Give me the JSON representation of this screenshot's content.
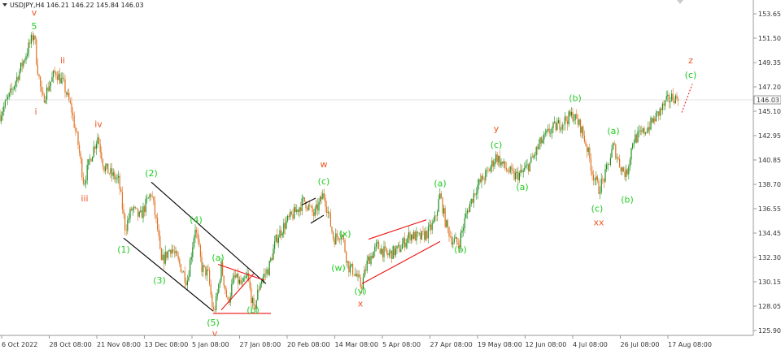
{
  "header": {
    "symbol": "USDJPY,H4",
    "ohlc": "146.21 146.22 145.84 146.03"
  },
  "colors": {
    "up": "#1a8c1a",
    "down": "#e07020",
    "green_label": "#22cc22",
    "red_label": "#ee5522",
    "channel_black": "#000000",
    "channel_red": "#ee1111",
    "axis": "#999999"
  },
  "chart_data": {
    "type": "candlestick",
    "title": "",
    "symbol": "USDJPY",
    "timeframe": "H4",
    "current_price": 146.03,
    "ylim": [
      125.3,
      154.6
    ],
    "y_ticks": [
      "153.65",
      "151.50",
      "149.35",
      "147.20",
      "145.10",
      "142.95",
      "140.85",
      "138.70",
      "136.55",
      "134.45",
      "132.30",
      "130.15",
      "128.05",
      "125.90"
    ],
    "x_ticks": [
      "6 Oct 2022",
      "28 Oct 08:00",
      "21 Nov 08:00",
      "13 Dec 08:00",
      "5 Jan 08:00",
      "27 Jan 08:00",
      "20 Feb 08:00",
      "14 Mar 08:00",
      "5 Apr 08:00",
      "27 Apr 08:00",
      "19 May 08:00",
      "12 Jun 08:00",
      "4 Jul 08:00",
      "26 Jul 08:00",
      "17 Aug 08:00"
    ],
    "price_path": [
      {
        "x": 0,
        "y": 144.8
      },
      {
        "x": 12,
        "y": 146.5
      },
      {
        "x": 25,
        "y": 148.8
      },
      {
        "x": 34,
        "y": 150.5
      },
      {
        "x": 42,
        "y": 152.0
      },
      {
        "x": 45,
        "y": 149.5
      },
      {
        "x": 52,
        "y": 146.0
      },
      {
        "x": 58,
        "y": 147.0
      },
      {
        "x": 68,
        "y": 148.6
      },
      {
        "x": 78,
        "y": 147.5
      },
      {
        "x": 88,
        "y": 145.2
      },
      {
        "x": 96,
        "y": 142.2
      },
      {
        "x": 103,
        "y": 138.8
      },
      {
        "x": 111,
        "y": 141.0
      },
      {
        "x": 120,
        "y": 142.9
      },
      {
        "x": 128,
        "y": 140.2
      },
      {
        "x": 138,
        "y": 139.5
      },
      {
        "x": 146,
        "y": 139.0
      },
      {
        "x": 154,
        "y": 134.8
      },
      {
        "x": 162,
        "y": 136.6
      },
      {
        "x": 172,
        "y": 135.8
      },
      {
        "x": 186,
        "y": 138.0
      },
      {
        "x": 194,
        "y": 134.6
      },
      {
        "x": 198,
        "y": 131.8
      },
      {
        "x": 210,
        "y": 133.2
      },
      {
        "x": 222,
        "y": 131.5
      },
      {
        "x": 230,
        "y": 130.2
      },
      {
        "x": 240,
        "y": 135.0
      },
      {
        "x": 248,
        "y": 131.4
      },
      {
        "x": 256,
        "y": 130.8
      },
      {
        "x": 262,
        "y": 127.4
      },
      {
        "x": 266,
        "y": 128.5
      },
      {
        "x": 272,
        "y": 131.5
      },
      {
        "x": 280,
        "y": 128.3
      },
      {
        "x": 288,
        "y": 130.6
      },
      {
        "x": 298,
        "y": 129.8
      },
      {
        "x": 304,
        "y": 130.7
      },
      {
        "x": 312,
        "y": 127.6
      },
      {
        "x": 320,
        "y": 130.2
      },
      {
        "x": 330,
        "y": 131.3
      },
      {
        "x": 340,
        "y": 134.0
      },
      {
        "x": 352,
        "y": 135.4
      },
      {
        "x": 362,
        "y": 136.2
      },
      {
        "x": 374,
        "y": 137.3
      },
      {
        "x": 386,
        "y": 136.0
      },
      {
        "x": 398,
        "y": 137.9
      },
      {
        "x": 404,
        "y": 136.0
      },
      {
        "x": 410,
        "y": 133.9
      },
      {
        "x": 420,
        "y": 134.5
      },
      {
        "x": 428,
        "y": 131.5
      },
      {
        "x": 436,
        "y": 131.0
      },
      {
        "x": 444,
        "y": 129.7
      },
      {
        "x": 452,
        "y": 132.0
      },
      {
        "x": 464,
        "y": 133.3
      },
      {
        "x": 476,
        "y": 132.5
      },
      {
        "x": 490,
        "y": 133.0
      },
      {
        "x": 504,
        "y": 134.3
      },
      {
        "x": 516,
        "y": 134.0
      },
      {
        "x": 526,
        "y": 134.5
      },
      {
        "x": 534,
        "y": 135.4
      },
      {
        "x": 541,
        "y": 137.8
      },
      {
        "x": 548,
        "y": 135.2
      },
      {
        "x": 556,
        "y": 133.8
      },
      {
        "x": 564,
        "y": 133.5
      },
      {
        "x": 574,
        "y": 136.3
      },
      {
        "x": 586,
        "y": 138.5
      },
      {
        "x": 600,
        "y": 139.8
      },
      {
        "x": 610,
        "y": 141.2
      },
      {
        "x": 620,
        "y": 140.2
      },
      {
        "x": 632,
        "y": 139.4
      },
      {
        "x": 642,
        "y": 139.7
      },
      {
        "x": 652,
        "y": 140.6
      },
      {
        "x": 664,
        "y": 142.3
      },
      {
        "x": 676,
        "y": 143.4
      },
      {
        "x": 690,
        "y": 144.1
      },
      {
        "x": 704,
        "y": 144.8
      },
      {
        "x": 714,
        "y": 143.7
      },
      {
        "x": 722,
        "y": 141.8
      },
      {
        "x": 728,
        "y": 139.8
      },
      {
        "x": 736,
        "y": 138.3
      },
      {
        "x": 744,
        "y": 139.5
      },
      {
        "x": 754,
        "y": 142.1
      },
      {
        "x": 762,
        "y": 140.4
      },
      {
        "x": 770,
        "y": 139.5
      },
      {
        "x": 778,
        "y": 142.6
      },
      {
        "x": 790,
        "y": 143.2
      },
      {
        "x": 800,
        "y": 144.0
      },
      {
        "x": 812,
        "y": 145.2
      },
      {
        "x": 820,
        "y": 146.0
      },
      {
        "x": 828,
        "y": 146.4
      },
      {
        "x": 834,
        "y": 146.03
      }
    ],
    "wave_labels": [
      {
        "text": "v",
        "x": 42,
        "y": 153.8,
        "color": "red"
      },
      {
        "text": "5",
        "x": 42,
        "y": 152.6,
        "color": "green"
      },
      {
        "text": "ii",
        "x": 77,
        "y": 149.6,
        "color": "red"
      },
      {
        "text": "i",
        "x": 44,
        "y": 145.1,
        "color": "red"
      },
      {
        "text": "iv",
        "x": 121,
        "y": 144.0,
        "color": "red"
      },
      {
        "text": "iii",
        "x": 104,
        "y": 137.5,
        "color": "red"
      },
      {
        "text": "(2)",
        "x": 186,
        "y": 139.7,
        "color": "green"
      },
      {
        "text": "(4)",
        "x": 241,
        "y": 135.6,
        "color": "green"
      },
      {
        "text": "(1)",
        "x": 152,
        "y": 133.0,
        "color": "green"
      },
      {
        "text": "(3)",
        "x": 196,
        "y": 130.3,
        "color": "green"
      },
      {
        "text": "(a)",
        "x": 268,
        "y": 132.3,
        "color": "green"
      },
      {
        "text": "(b)",
        "x": 311,
        "y": 127.7,
        "color": "green"
      },
      {
        "text": "(5)",
        "x": 262,
        "y": 126.6,
        "color": "green"
      },
      {
        "text": "v",
        "x": 264,
        "y": 125.7,
        "color": "red"
      },
      {
        "text": "w",
        "x": 398,
        "y": 140.5,
        "color": "red"
      },
      {
        "text": "(c)",
        "x": 398,
        "y": 139.0,
        "color": "green"
      },
      {
        "text": "(x)",
        "x": 424,
        "y": 134.4,
        "color": "green"
      },
      {
        "text": "(w)",
        "x": 416,
        "y": 131.4,
        "color": "green"
      },
      {
        "text": "(y)",
        "x": 443,
        "y": 129.4,
        "color": "green"
      },
      {
        "text": "x",
        "x": 443,
        "y": 128.3,
        "color": "red"
      },
      {
        "text": "(a)",
        "x": 541,
        "y": 138.8,
        "color": "green"
      },
      {
        "text": "(b)",
        "x": 566,
        "y": 133.0,
        "color": "green"
      },
      {
        "text": "y",
        "x": 610,
        "y": 143.6,
        "color": "red"
      },
      {
        "text": "(c)",
        "x": 610,
        "y": 142.2,
        "color": "green"
      },
      {
        "text": "(a)",
        "x": 642,
        "y": 138.5,
        "color": "green"
      },
      {
        "text": "(b)",
        "x": 707,
        "y": 146.3,
        "color": "green"
      },
      {
        "text": "(a)",
        "x": 754,
        "y": 143.4,
        "color": "green"
      },
      {
        "text": "(c)",
        "x": 734,
        "y": 136.6,
        "color": "green"
      },
      {
        "text": "xx",
        "x": 736,
        "y": 135.4,
        "color": "red"
      },
      {
        "text": "(b)",
        "x": 771,
        "y": 137.4,
        "color": "green"
      },
      {
        "text": "z",
        "x": 849,
        "y": 149.6,
        "color": "red"
      },
      {
        "text": "(c)",
        "x": 849,
        "y": 148.3,
        "color": "green"
      }
    ],
    "trend_lines": [
      {
        "color": "black",
        "from": {
          "x": 152,
          "y": 134.0
        },
        "to": {
          "x": 262,
          "y": 127.6
        }
      },
      {
        "color": "black",
        "from": {
          "x": 186,
          "y": 138.9
        },
        "to": {
          "x": 327,
          "y": 130.0
        }
      },
      {
        "color": "red",
        "from": {
          "x": 262,
          "y": 127.4
        },
        "to": {
          "x": 333,
          "y": 127.4
        }
      },
      {
        "color": "red",
        "from": {
          "x": 268,
          "y": 131.7
        },
        "to": {
          "x": 325,
          "y": 130.3
        }
      },
      {
        "color": "red",
        "from": {
          "x": 272,
          "y": 127.7
        },
        "to": {
          "x": 312,
          "y": 130.9
        }
      },
      {
        "color": "black",
        "from": {
          "x": 371,
          "y": 136.9
        },
        "to": {
          "x": 388,
          "y": 137.5
        }
      },
      {
        "color": "black",
        "from": {
          "x": 382,
          "y": 135.3
        },
        "to": {
          "x": 398,
          "y": 136.0
        }
      },
      {
        "color": "red",
        "from": {
          "x": 453,
          "y": 133.9
        },
        "to": {
          "x": 524,
          "y": 135.6
        }
      },
      {
        "color": "red",
        "from": {
          "x": 445,
          "y": 130.0
        },
        "to": {
          "x": 541,
          "y": 133.7
        }
      }
    ],
    "forecast_line": {
      "color": "red",
      "style": "dotted",
      "from": {
        "x": 838,
        "y": 145.0
      },
      "to": {
        "x": 851,
        "y": 147.5
      }
    },
    "grid": false
  }
}
